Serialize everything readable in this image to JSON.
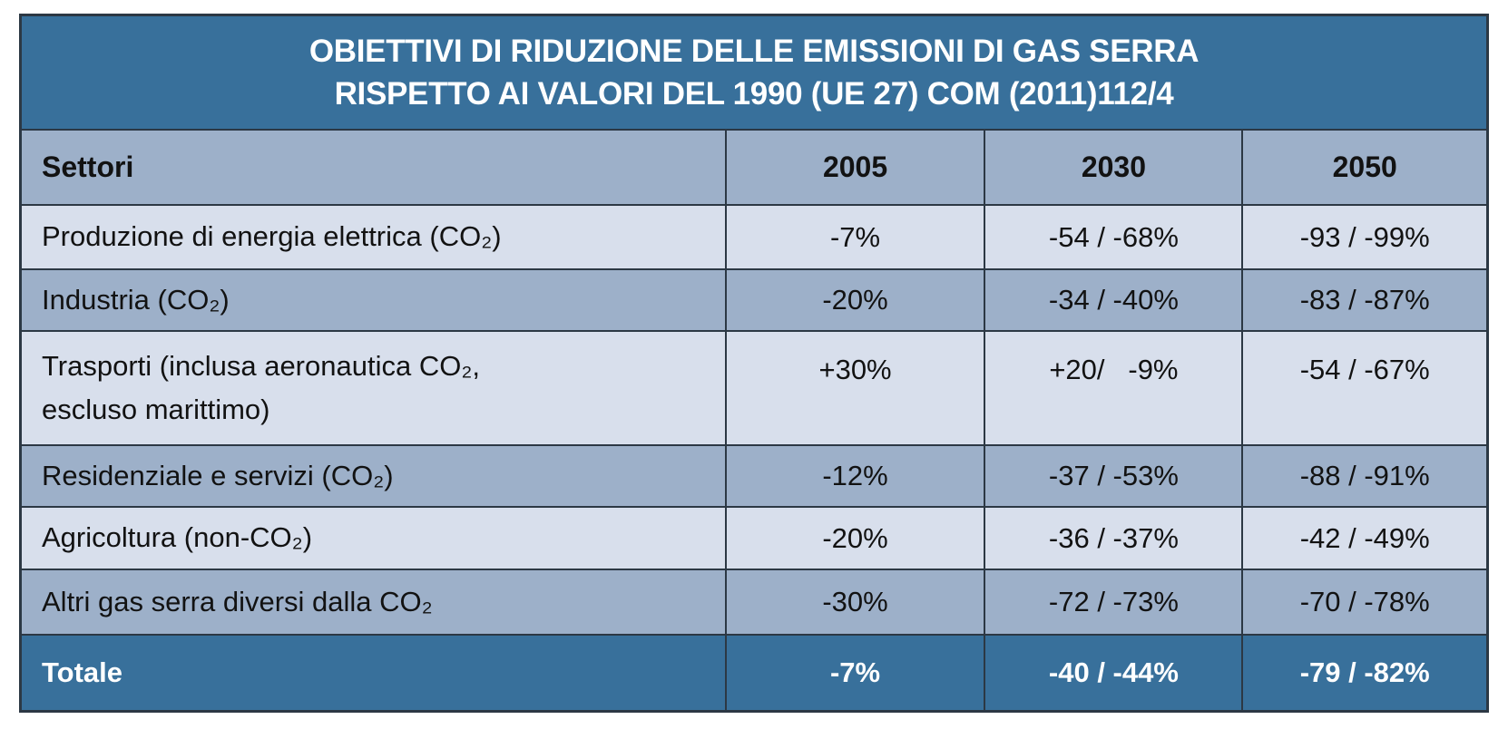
{
  "header_title": {
    "line1": "OBIETTIVI DI RIDUZIONE DELLE EMISSIONI DI GAS SERRA",
    "line2": "RISPETTO AI VALORI DEL 1990 (UE 27) COM (2011)112/4"
  },
  "chart_data": {
    "type": "table",
    "title": "OBIETTIVI DI RIDUZIONE DELLE EMISSIONI DI GAS SERRA RISPETTO AI VALORI DEL 1990 (UE 27) COM (2011)112/4",
    "columns": [
      "Settori",
      "2005",
      "2030",
      "2050"
    ],
    "rows": [
      {
        "label": "Produzione di energia elettrica (CO₂)",
        "values": [
          "-7%",
          "-54 / -68%",
          "-93 / -99%"
        ],
        "shade": "light"
      },
      {
        "label": "Industria (CO₂)",
        "values": [
          "-20%",
          "-34 / -40%",
          "-83 / -87%"
        ],
        "shade": "medium"
      },
      {
        "label": "Trasporti (inclusa aeronautica CO₂,\nescluso marittimo)",
        "values": [
          "+30%",
          "+20/   -9%",
          "-54 / -67%"
        ],
        "shade": "light"
      },
      {
        "label": "Residenziale e servizi (CO₂)",
        "values": [
          "-12%",
          "-37 / -53%",
          "-88 / -91%"
        ],
        "shade": "medium"
      },
      {
        "label": "Agricoltura (non-CO₂)",
        "values": [
          "-20%",
          "-36 / -37%",
          "-42 / -49%"
        ],
        "shade": "light"
      },
      {
        "label": "Altri gas serra diversi dalla CO₂",
        "values": [
          "-30%",
          "-72 / -73%",
          "-70 / -78%"
        ],
        "shade": "medium"
      }
    ],
    "footer": {
      "label": "Totale",
      "values": [
        "-7%",
        "-40 / -44%",
        "-79 / -82%"
      ]
    },
    "layout": {
      "header_row_background": "medium-blue",
      "body_row_shading": "alternating light/medium",
      "title_and_total_background": "dark-blue",
      "grid": "dark 2px lines between all cells"
    }
  },
  "colors": {
    "dark-blue": "#38709b",
    "medium-blue": "#9db0c9",
    "light-blue": "#d8dfec",
    "line": "#2c3844",
    "text-dark": "#121212",
    "text-light": "#ffffff"
  }
}
